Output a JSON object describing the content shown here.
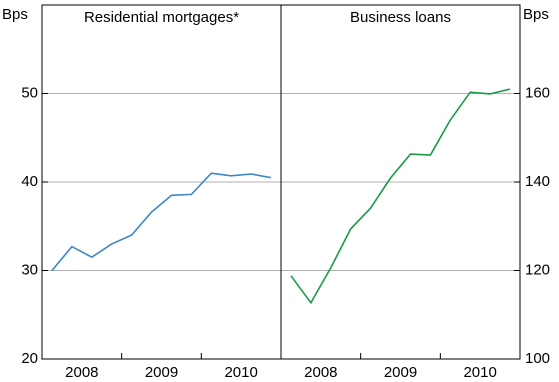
{
  "chart_data": [
    {
      "type": "line",
      "title": "Residential mortgages*",
      "y_label": "Bps",
      "y_axis_side": "left",
      "x": [
        2008.125,
        2008.375,
        2008.625,
        2008.875,
        2009.125,
        2009.375,
        2009.625,
        2009.875,
        2010.125,
        2010.375,
        2010.625,
        2010.875
      ],
      "values": [
        30.0,
        32.7,
        31.5,
        33.0,
        34.0,
        36.6,
        38.5,
        38.6,
        41.0,
        40.7,
        40.9,
        40.5
      ],
      "color": "#3b87c4",
      "xlim": [
        2008,
        2011
      ],
      "xticks": [
        {
          "value": 2008.5,
          "label": "2008"
        },
        {
          "value": 2009.5,
          "label": "2009"
        },
        {
          "value": 2010.5,
          "label": "2010"
        }
      ],
      "ylim": [
        20,
        60
      ],
      "yticks": [
        20,
        30,
        40,
        50
      ],
      "grid": true
    },
    {
      "type": "line",
      "title": "Business loans",
      "y_label": "Bps",
      "y_axis_side": "right",
      "x": [
        2008.125,
        2008.375,
        2008.625,
        2008.875,
        2009.125,
        2009.375,
        2009.625,
        2009.875,
        2010.125,
        2010.375,
        2010.625,
        2010.875
      ],
      "values": [
        118.8,
        112.7,
        120.6,
        129.4,
        134.1,
        140.9,
        146.3,
        146.1,
        154.0,
        160.3,
        159.9,
        161.0
      ],
      "color": "#1a9a48",
      "xlim": [
        2008,
        2011
      ],
      "xticks": [
        {
          "value": 2008.5,
          "label": "2008"
        },
        {
          "value": 2009.5,
          "label": "2009"
        },
        {
          "value": 2010.5,
          "label": "2010"
        }
      ],
      "ylim": [
        100,
        180
      ],
      "yticks": [
        100,
        120,
        140,
        160
      ],
      "grid": true
    }
  ]
}
